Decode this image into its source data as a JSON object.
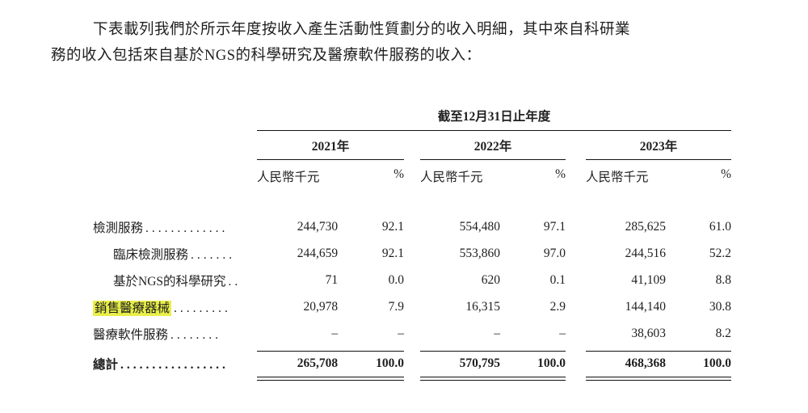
{
  "intro": {
    "line1": "下表載列我們於所示年度按收入產生活動性質劃分的收入明細，其中來自科研業",
    "line2": "務的收入包括來自基於NGS的科學研究及醫療軟件服務的收入："
  },
  "table": {
    "period_header": "截至12月31日止年度",
    "years": [
      "2021年",
      "2022年",
      "2023年"
    ],
    "unit_header": "人民幣千元",
    "pct_header": "%",
    "highlight_color": "#e9ef48",
    "rows": [
      {
        "label": "檢測服務",
        "dots": ".............",
        "values": [
          "244,730",
          "92.1",
          "554,480",
          "97.1",
          "285,625",
          "61.0"
        ]
      },
      {
        "label": "臨床檢測服務",
        "dots": ".......",
        "values": [
          "244,659",
          "92.1",
          "553,860",
          "97.0",
          "244,516",
          "52.2"
        ]
      },
      {
        "label": "基於NGS的科學研究",
        "dots": "..",
        "values": [
          "71",
          "0.0",
          "620",
          "0.1",
          "41,109",
          "8.8"
        ]
      },
      {
        "label": "銷售醫療器械",
        "dots": ".........",
        "values": [
          "20,978",
          "7.9",
          "16,315",
          "2.9",
          "144,140",
          "30.8"
        ]
      },
      {
        "label": "醫療軟件服務",
        "dots": "........",
        "values": [
          "–",
          "–",
          "–",
          "–",
          "38,603",
          "8.2"
        ]
      }
    ],
    "total": {
      "label": "總計",
      "dots": ".................",
      "values": [
        "265,708",
        "100.0",
        "570,795",
        "100.0",
        "468,368",
        "100.0"
      ]
    }
  }
}
